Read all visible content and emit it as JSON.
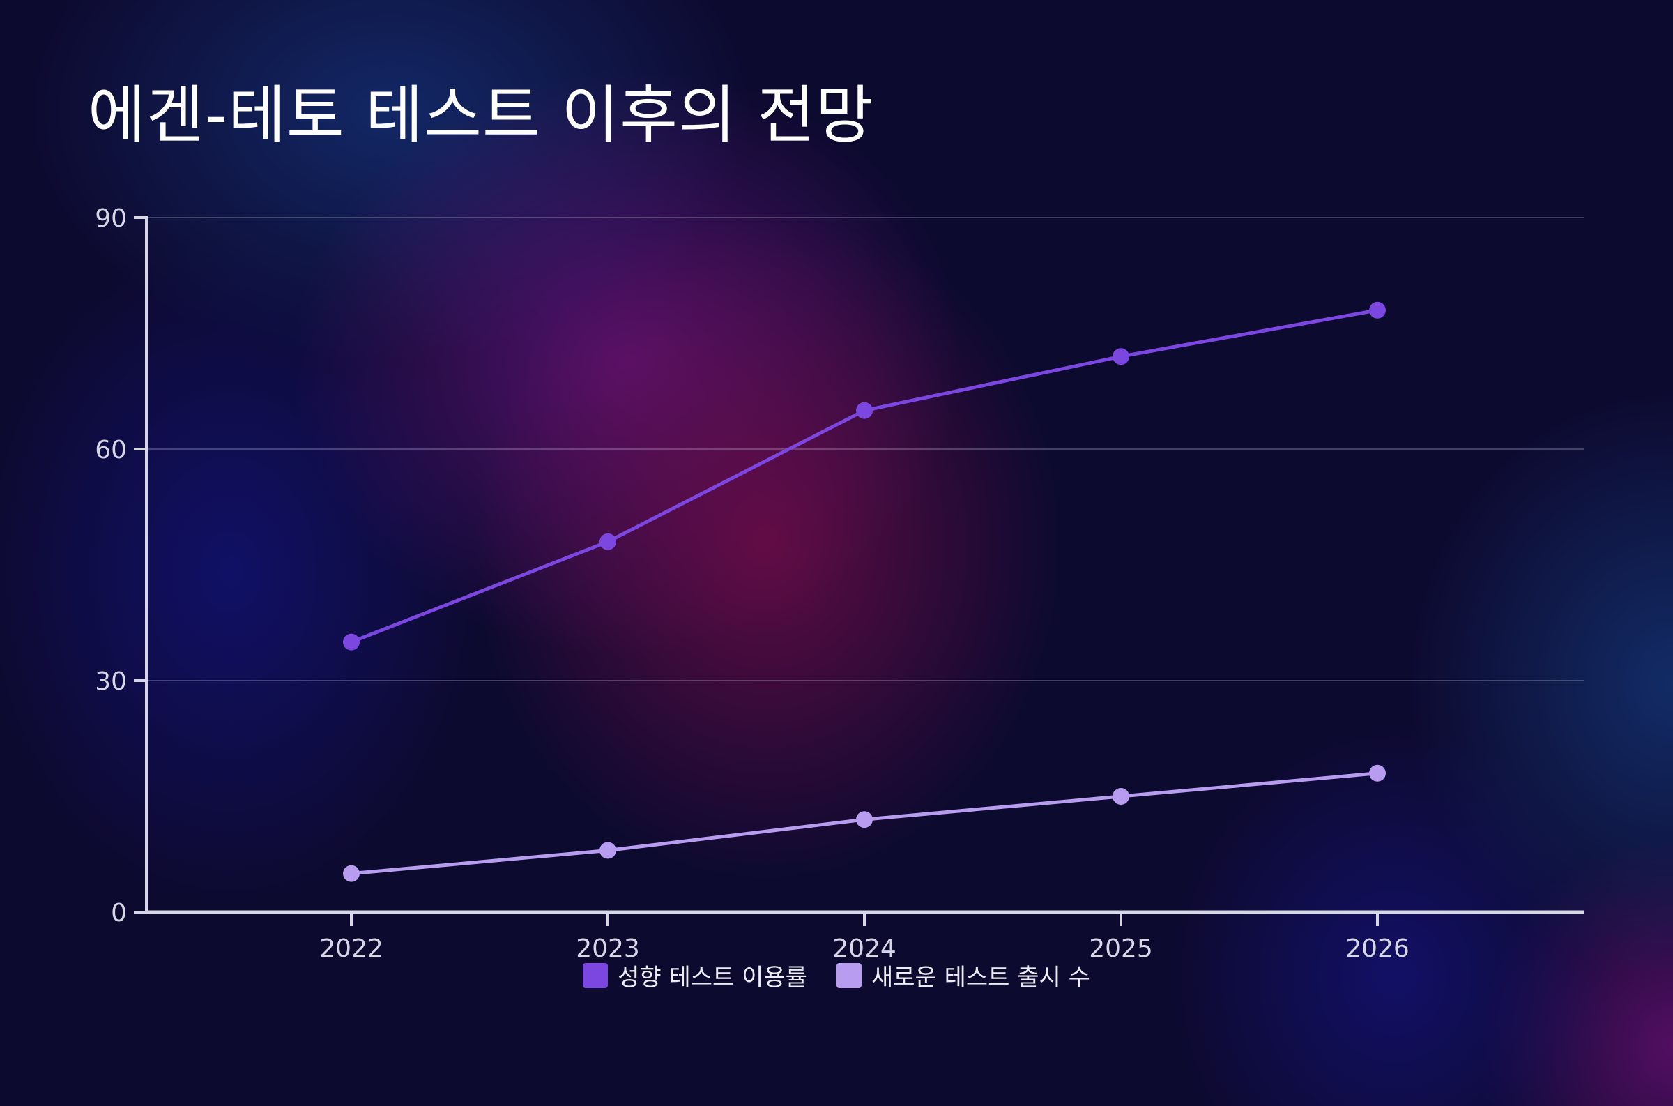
{
  "title": "에겐-테토 테스트 이후의 전망",
  "chart_data": {
    "type": "line",
    "title": "에겐-테토 테스트 이후의 전망",
    "xlabel": "",
    "ylabel": "",
    "categories": [
      "2022",
      "2023",
      "2024",
      "2025",
      "2026"
    ],
    "series": [
      {
        "name": "성향 테스트 이용률",
        "values": [
          35,
          48,
          65,
          72,
          78
        ],
        "color": "#7b47e0"
      },
      {
        "name": "새로운 테스트 출시 수",
        "values": [
          5,
          8,
          12,
          15,
          18
        ],
        "color": "#b79cf0"
      }
    ],
    "ylim": [
      0,
      90
    ],
    "yticks": [
      "0",
      "30",
      "60",
      "90"
    ],
    "grid": true,
    "legend_position": "bottom-center"
  }
}
